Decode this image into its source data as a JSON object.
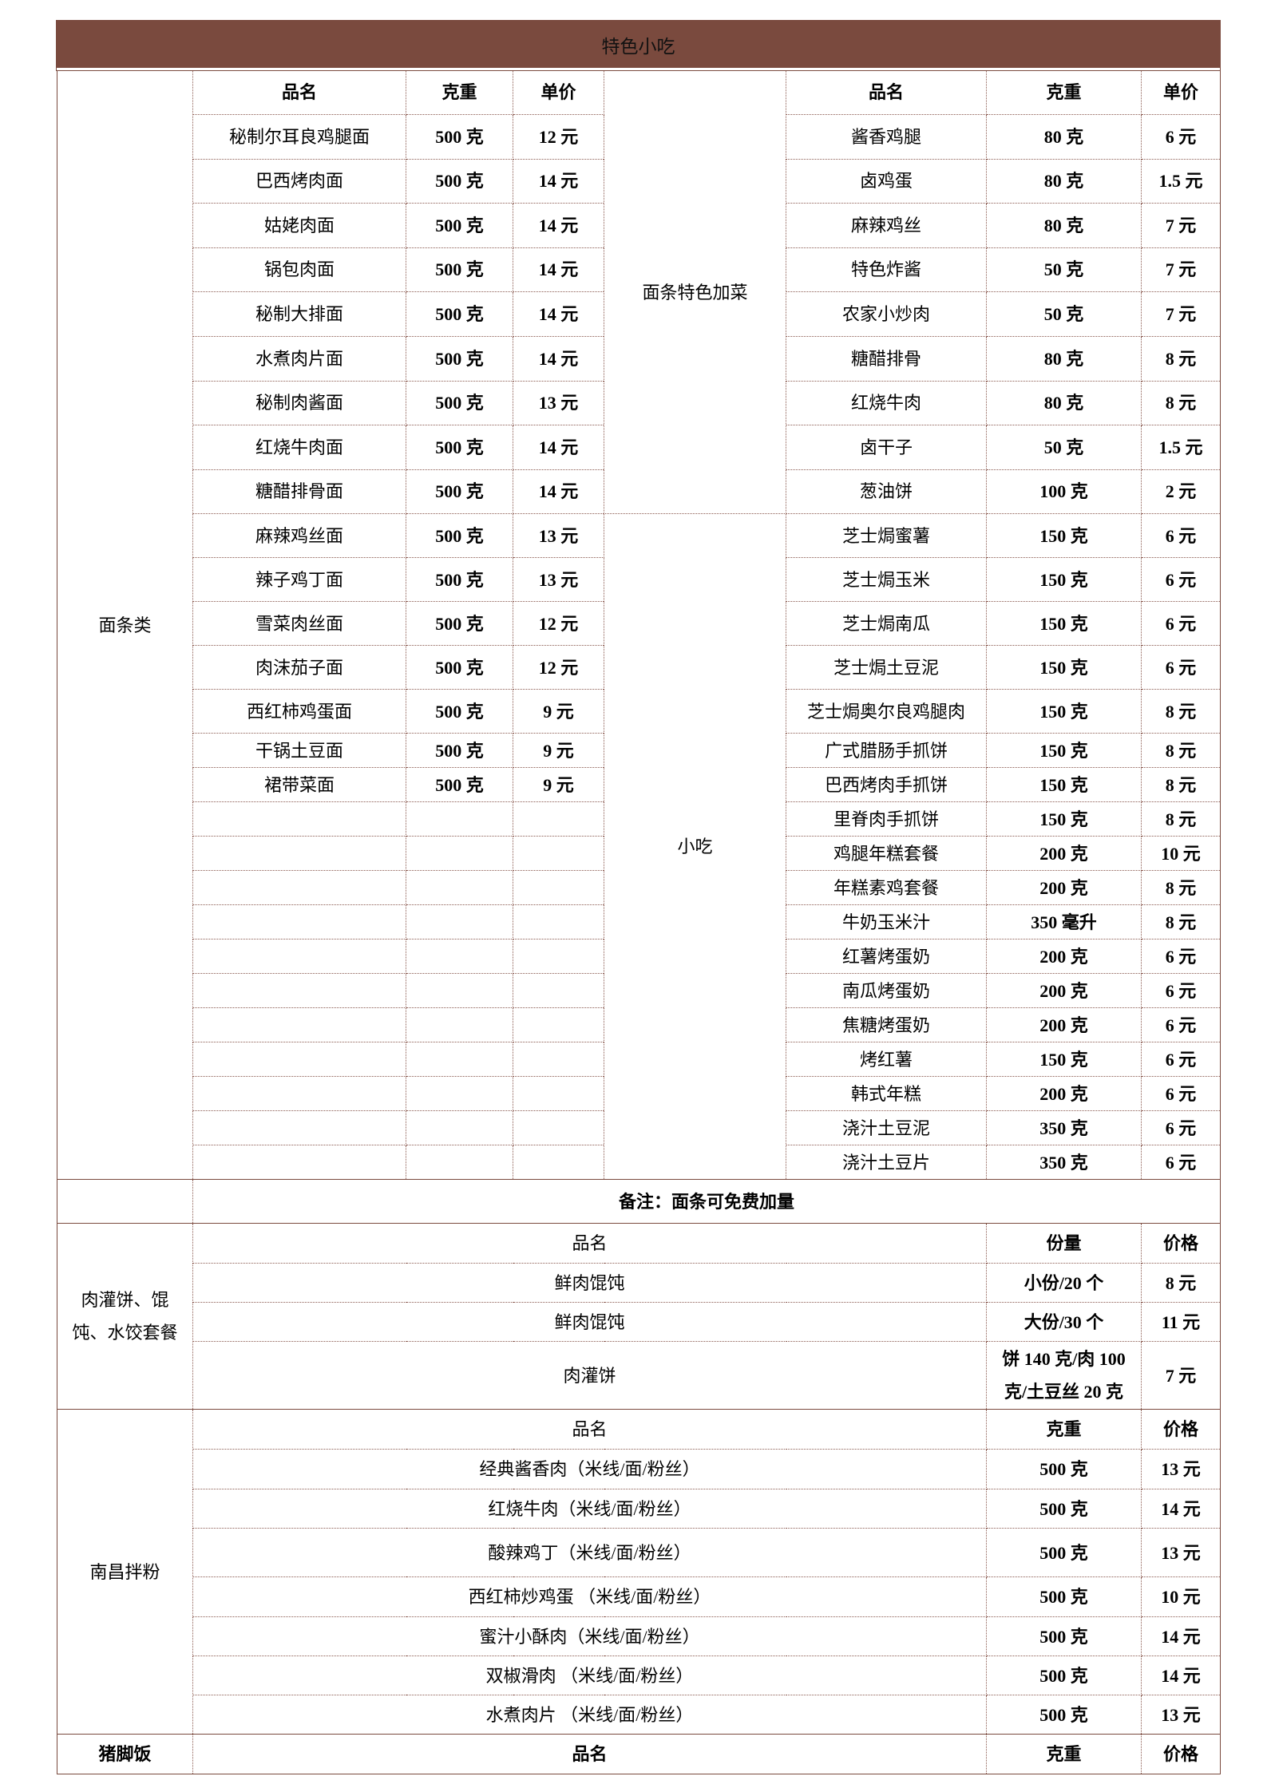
{
  "title": "特色小吃",
  "colors": {
    "header_bg": "#7a4a3e",
    "border": "#7a4a3e"
  },
  "noodles": {
    "category": "面条类",
    "headers": [
      "品名",
      "克重",
      "单价"
    ],
    "items": [
      [
        "秘制尔耳良鸡腿面",
        "500 克",
        "12 元"
      ],
      [
        "巴西烤肉面",
        "500 克",
        "14 元"
      ],
      [
        "姑姥肉面",
        "500 克",
        "14 元"
      ],
      [
        "锅包肉面",
        "500 克",
        "14 元"
      ],
      [
        "秘制大排面",
        "500 克",
        "14 元"
      ],
      [
        "水煮肉片面",
        "500 克",
        "14 元"
      ],
      [
        "秘制肉酱面",
        "500 克",
        "13 元"
      ],
      [
        "红烧牛肉面",
        "500 克",
        "14 元"
      ],
      [
        "糖醋排骨面",
        "500 克",
        "14 元"
      ],
      [
        "麻辣鸡丝面",
        "500 克",
        "13 元"
      ],
      [
        "辣子鸡丁面",
        "500 克",
        "13 元"
      ],
      [
        "雪菜肉丝面",
        "500 克",
        "12 元"
      ],
      [
        "肉沫茄子面",
        "500 克",
        "12 元"
      ],
      [
        "西红柿鸡蛋面",
        "500 克",
        "9 元"
      ],
      [
        "干锅土豆面",
        "500 克",
        "9 元"
      ],
      [
        "裙带菜面",
        "500 克",
        "9 元"
      ]
    ],
    "note": "备注：面条可免费加量"
  },
  "sides": {
    "headers": [
      "品名",
      "克重",
      "单价"
    ],
    "groups": [
      {
        "label": "面条特色加菜",
        "items": [
          [
            "酱香鸡腿",
            "80 克",
            "6 元"
          ],
          [
            "卤鸡蛋",
            "80 克",
            "1.5 元"
          ],
          [
            "麻辣鸡丝",
            "80 克",
            "7 元"
          ],
          [
            "特色炸酱",
            "50 克",
            "7 元"
          ],
          [
            "农家小炒肉",
            "50 克",
            "7 元"
          ],
          [
            "糖醋排骨",
            "80 克",
            "8 元"
          ],
          [
            "红烧牛肉",
            "80 克",
            "8 元"
          ],
          [
            "卤干子",
            "50 克",
            "1.5 元"
          ],
          [
            "葱油饼",
            "100 克",
            "2 元"
          ]
        ]
      },
      {
        "label": "小吃",
        "items": [
          [
            "芝士焗蜜薯",
            "150 克",
            "6 元"
          ],
          [
            "芝士焗玉米",
            "150 克",
            "6 元"
          ],
          [
            "芝士焗南瓜",
            "150 克",
            "6 元"
          ],
          [
            "芝士焗土豆泥",
            "150 克",
            "6 元"
          ],
          [
            "芝士焗奥尔良鸡腿肉",
            "150 克",
            "8 元"
          ],
          [
            "广式腊肠手抓饼",
            "150 克",
            "8 元"
          ],
          [
            "巴西烤肉手抓饼",
            "150 克",
            "8 元"
          ],
          [
            "里脊肉手抓饼",
            "150 克",
            "8 元"
          ],
          [
            "鸡腿年糕套餐",
            "200 克",
            "10 元"
          ],
          [
            "年糕素鸡套餐",
            "200 克",
            "8 元"
          ],
          [
            "牛奶玉米汁",
            "350 毫升",
            "8 元"
          ],
          [
            "红薯烤蛋奶",
            "200 克",
            "6 元"
          ],
          [
            "南瓜烤蛋奶",
            "200 克",
            "6 元"
          ],
          [
            "焦糖烤蛋奶",
            "200 克",
            "6 元"
          ],
          [
            "烤红薯",
            "150 克",
            "6 元"
          ],
          [
            "韩式年糕",
            "200 克",
            "6 元"
          ],
          [
            "浇汁土豆泥",
            "350 克",
            "6 元"
          ],
          [
            "浇汁土豆片",
            "350 克",
            "6 元"
          ]
        ]
      }
    ]
  },
  "wonton": {
    "category": "肉灌饼、馄饨、水饺套餐",
    "headers": [
      "品名",
      "份量",
      "价格"
    ],
    "items": [
      [
        "鲜肉馄饨",
        "小份/20 个",
        "8 元"
      ],
      [
        "鲜肉馄饨",
        "大份/30 个",
        "11 元"
      ],
      [
        "肉灌饼",
        "饼 140 克/肉 100 克/土豆丝 20 克",
        "7 元"
      ]
    ]
  },
  "nanchang": {
    "category": "南昌拌粉",
    "headers": [
      "品名",
      "克重",
      "价格"
    ],
    "items": [
      [
        "经典酱香肉（米线/面/粉丝）",
        "500 克",
        "13 元"
      ],
      [
        "红烧牛肉（米线/面/粉丝）",
        "500 克",
        "14 元"
      ],
      [
        "酸辣鸡丁（米线/面/粉丝）",
        "500 克",
        "13 元"
      ],
      [
        "西红柿炒鸡蛋 （米线/面/粉丝）",
        "500 克",
        "10 元"
      ],
      [
        "蜜汁小酥肉（米线/面/粉丝）",
        "500 克",
        "14 元"
      ],
      [
        "双椒滑肉 （米线/面/粉丝）",
        "500 克",
        "14 元"
      ],
      [
        "水煮肉片 （米线/面/粉丝）",
        "500 克",
        "13 元"
      ]
    ]
  },
  "pigfeet": {
    "category": "猪脚饭",
    "headers": [
      "品名",
      "克重",
      "价格"
    ]
  }
}
